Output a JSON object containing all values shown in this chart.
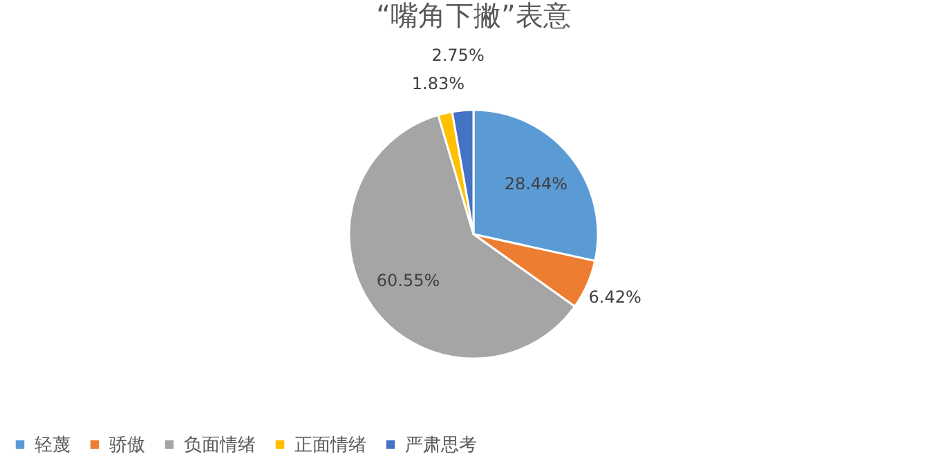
{
  "chart_data": {
    "type": "pie",
    "title": "“嘴角下撇”表意",
    "categories": [
      "轻蔑",
      "骄傲",
      "负面情绪",
      "正面情绪",
      "严肃思考"
    ],
    "values": [
      28.44,
      6.42,
      60.55,
      1.83,
      2.75
    ],
    "colors": [
      "#5b9bd5",
      "#ed7d31",
      "#a5a5a5",
      "#ffc000",
      "#4472c4"
    ],
    "value_labels": [
      "28.44%",
      "6.42%",
      "60.55%",
      "1.83%",
      "2.75%"
    ],
    "legend": "bottom"
  }
}
